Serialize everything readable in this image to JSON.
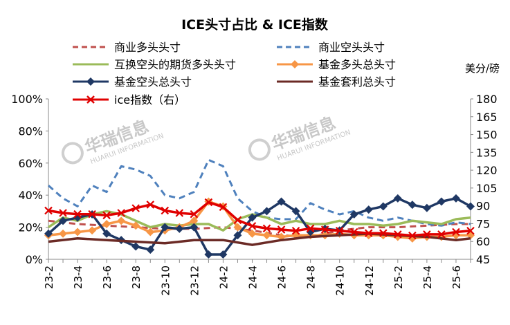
{
  "chart_data": {
    "type": "line",
    "title": "ICE头寸占比 & ICE指数",
    "right_axis_unit": "美分/磅",
    "left_axis": {
      "min": 0,
      "max": 100,
      "ticks": [
        "0%",
        "20%",
        "40%",
        "60%",
        "80%",
        "100%"
      ]
    },
    "right_axis": {
      "min": 45,
      "max": 180,
      "ticks": [
        "45",
        "60",
        "75",
        "90",
        "105",
        "120",
        "135",
        "150",
        "165",
        "180"
      ]
    },
    "x_axis": {
      "start": "2023-02",
      "end": "2025-07",
      "labels": [
        "23-2",
        "23-4",
        "23-6",
        "23-8",
        "23-10",
        "23-12",
        "24-2",
        "24-4",
        "24-6",
        "24-8",
        "24-10",
        "24-12",
        "25-2",
        "25-4",
        "25-6"
      ]
    },
    "grid": false,
    "legend_placement": "top",
    "watermark": {
      "cn": "华瑞信息",
      "en": "HUARUI INFORMATION"
    },
    "series": [
      {
        "name": "商业多头头寸",
        "axis": "left",
        "color": "#c0504d",
        "style": "dashed",
        "x": [
          0,
          2,
          4,
          6,
          8,
          10,
          12,
          14,
          16,
          18,
          20,
          22,
          24,
          26,
          28,
          29
        ],
        "y": [
          24,
          22,
          21,
          20,
          19,
          19,
          20,
          18,
          15,
          14,
          18,
          20,
          20,
          21,
          22,
          22
        ]
      },
      {
        "name": "商业空头头寸",
        "axis": "left",
        "color": "#4f81bd",
        "style": "dashed",
        "x": [
          0,
          1,
          2,
          3,
          4,
          5,
          6,
          7,
          8,
          9,
          10,
          11,
          12,
          13,
          14,
          15,
          16,
          17,
          18,
          19,
          20,
          21,
          22,
          23,
          24,
          25,
          26,
          27,
          28,
          29
        ],
        "y": [
          46,
          38,
          33,
          46,
          42,
          58,
          56,
          52,
          40,
          38,
          42,
          62,
          58,
          38,
          30,
          26,
          25,
          25,
          35,
          31,
          28,
          30,
          26,
          24,
          26,
          24,
          22,
          21,
          23,
          22
        ]
      },
      {
        "name": "互换空头的期货多头头寸",
        "axis": "left",
        "color": "#9bbb59",
        "style": "solid",
        "x": [
          0,
          1,
          2,
          3,
          4,
          5,
          6,
          7,
          8,
          9,
          10,
          11,
          12,
          13,
          14,
          15,
          16,
          17,
          18,
          19,
          20,
          21,
          22,
          23,
          24,
          25,
          26,
          27,
          28,
          29
        ],
        "y": [
          20,
          26,
          24,
          28,
          30,
          28,
          24,
          20,
          22,
          21,
          22,
          22,
          18,
          25,
          28,
          26,
          22,
          24,
          22,
          22,
          24,
          22,
          22,
          21,
          22,
          24,
          23,
          22,
          25,
          26
        ]
      },
      {
        "name": "基金多头总头寸",
        "axis": "left",
        "color": "#f79646",
        "style": "solid",
        "marker": "diamond",
        "x": [
          0,
          1,
          2,
          3,
          4,
          5,
          6,
          7,
          8,
          9,
          10,
          11,
          12,
          13,
          14,
          15,
          16,
          17,
          18,
          19,
          20,
          21,
          22,
          23,
          24,
          25,
          26,
          27,
          28,
          29
        ],
        "y": [
          15,
          16,
          17,
          18,
          22,
          24,
          21,
          17,
          18,
          20,
          24,
          36,
          33,
          20,
          16,
          15,
          14,
          15,
          15,
          15,
          16,
          15,
          15,
          15,
          14,
          13,
          14,
          14,
          15,
          15
        ]
      },
      {
        "name": "基金空头总头寸",
        "axis": "left",
        "color": "#1f3864",
        "style": "solid",
        "marker": "diamond",
        "x": [
          0,
          1,
          2,
          3,
          4,
          5,
          6,
          7,
          8,
          9,
          10,
          11,
          12,
          13,
          14,
          15,
          16,
          17,
          18,
          19,
          20,
          21,
          22,
          23,
          24,
          25,
          26,
          27,
          28,
          29
        ],
        "y": [
          16,
          24,
          26,
          28,
          16,
          12,
          8,
          6,
          20,
          19,
          20,
          3,
          3,
          15,
          26,
          30,
          36,
          30,
          17,
          19,
          18,
          28,
          31,
          33,
          38,
          34,
          32,
          36,
          38,
          33
        ]
      },
      {
        "name": "基金套利总头寸",
        "axis": "left",
        "color": "#6b2a25",
        "style": "solid",
        "x": [
          0,
          2,
          4,
          6,
          8,
          10,
          12,
          14,
          16,
          18,
          20,
          22,
          24,
          26,
          28,
          29
        ],
        "y": [
          11,
          13,
          12,
          11,
          10,
          12,
          12,
          9,
          12,
          14,
          15,
          16,
          15,
          14,
          12,
          13
        ]
      },
      {
        "name": "ice指数（右）",
        "axis": "right",
        "color": "#e00000",
        "style": "solid",
        "marker": "x",
        "x": [
          0,
          1,
          2,
          3,
          4,
          5,
          6,
          7,
          8,
          9,
          10,
          11,
          12,
          13,
          14,
          15,
          16,
          17,
          18,
          19,
          20,
          21,
          22,
          23,
          24,
          25,
          26,
          27,
          28,
          29
        ],
        "y": [
          86,
          84,
          83,
          83,
          82,
          84,
          88,
          91,
          86,
          84,
          83,
          93,
          89,
          78,
          73,
          71,
          70,
          69,
          71,
          70,
          69,
          68,
          67,
          67,
          66,
          65,
          66,
          66,
          68,
          69
        ]
      }
    ]
  }
}
